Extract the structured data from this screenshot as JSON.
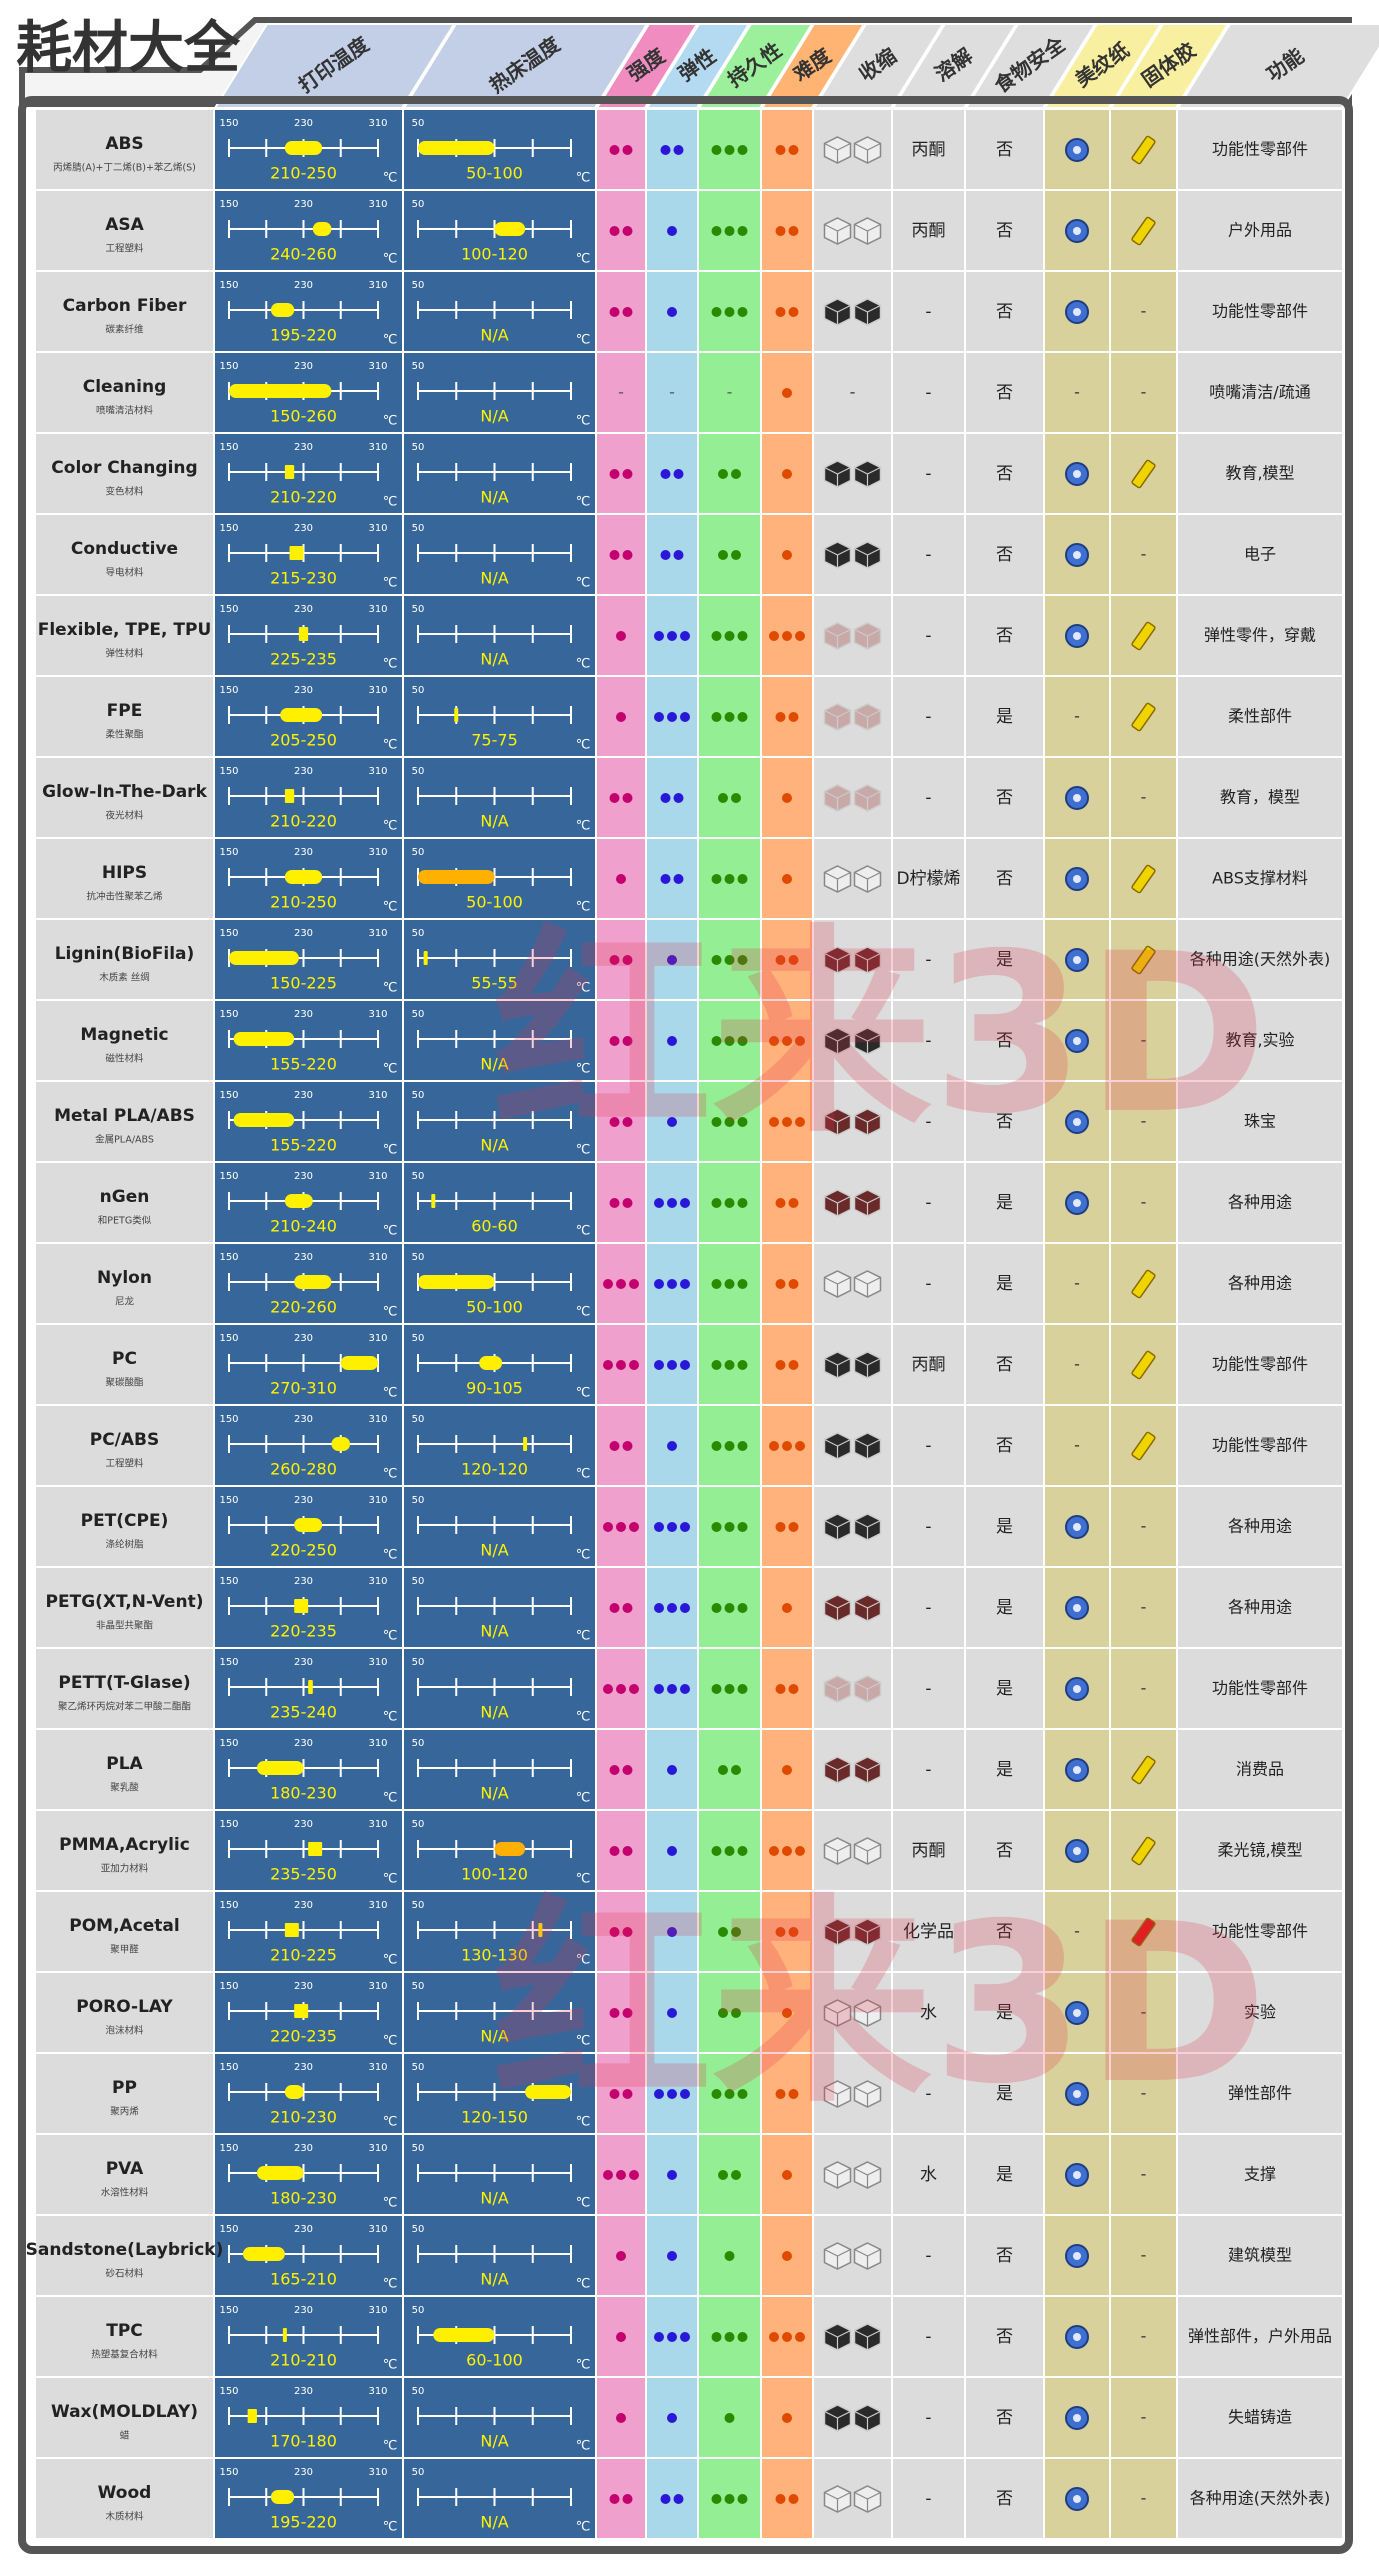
{
  "table": {
    "title": "耗材大全",
    "watermark": "红来3D",
    "header": {
      "print": "打印温度",
      "bed": "热床温度",
      "st": "强度",
      "el": "弹性",
      "du": "持久性",
      "di": "难度",
      "sh": "收缩",
      "ds": "溶解",
      "fd": "食物安全",
      "tp": "美纹纸",
      "gl": "固体胶",
      "fn": "功能"
    },
    "unit": "℃",
    "print_axis": {
      "lim": [
        150,
        310
      ],
      "ticks": [
        150,
        230,
        310
      ],
      "minor": [
        190,
        270
      ]
    },
    "bed_axis": {
      "lim": [
        50,
        150
      ],
      "ticks": [
        50
      ],
      "minor": [
        75,
        100,
        125,
        150
      ]
    },
    "bar_color": "#fff000",
    "dot_colors": {
      "st": "#c4006e",
      "el": "#2a18d8",
      "du": "#2a8a00",
      "di": "#e04a00"
    },
    "shrink_colors": [
      "#eeeeee",
      "#c9a8a8",
      "#6a2a2a",
      "#2a2a2a"
    ],
    "rows": [
      {
        "n": "ABS",
        "s": "丙烯腈(A)+丁二烯(B)+苯乙烯(S)",
        "p": [
          210,
          250
        ],
        "pl": "210-250",
        "b": [
          50,
          100
        ],
        "bl": "50-100",
        "st": 2,
        "el": 2,
        "du": 3,
        "di": 2,
        "sh": 1,
        "ds": "丙酮",
        "fd": "否",
        "tp": "#3f6fd0",
        "gl": "#f0d400",
        "fn": "功能性零部件"
      },
      {
        "n": "ASA",
        "s": "工程塑料",
        "p": [
          240,
          260
        ],
        "pl": "240-260",
        "b": [
          100,
          120
        ],
        "bl": "100-120",
        "st": 2,
        "el": 1,
        "du": 3,
        "di": 2,
        "sh": 1,
        "ds": "丙酮",
        "fd": "否",
        "tp": "#3f6fd0",
        "gl": "#f0d400",
        "fn": "户外用品"
      },
      {
        "n": "Carbon Fiber",
        "s": "碳素纤维",
        "p": [
          195,
          220
        ],
        "pl": "195-220",
        "b": null,
        "bl": "N/A",
        "st": 2,
        "el": 1,
        "du": 3,
        "di": 2,
        "sh": 4,
        "ds": "-",
        "fd": "否",
        "tp": "#3f6fd0",
        "gl": "-",
        "fn": "功能性零部件"
      },
      {
        "n": "Cleaning",
        "s": "喷嘴清洁材料",
        "p": [
          150,
          260
        ],
        "pl": "150-260",
        "b": null,
        "bl": "N/A",
        "st": "-",
        "el": "-",
        "du": "-",
        "di": 1,
        "sh": "-",
        "ds": "-",
        "fd": "否",
        "tp": "-",
        "gl": "-",
        "fn": "喷嘴清洁/疏通"
      },
      {
        "n": "Color Changing",
        "s": "变色材料",
        "p": [
          210,
          220
        ],
        "pl": "210-220",
        "b": null,
        "bl": "N/A",
        "st": 2,
        "el": 2,
        "du": 2,
        "di": 1,
        "sh": 4,
        "ds": "-",
        "fd": "否",
        "tp": "#3f6fd0",
        "gl": "#f0d400",
        "fn": "教育,模型"
      },
      {
        "n": "Conductive",
        "s": "导电材料",
        "p": [
          215,
          230
        ],
        "pl": "215-230",
        "b": null,
        "bl": "N/A",
        "st": 2,
        "el": 2,
        "du": 2,
        "di": 1,
        "sh": 4,
        "ds": "-",
        "fd": "否",
        "tp": "#3f6fd0",
        "gl": "-",
        "fn": "电子"
      },
      {
        "n": "Flexible, TPE, TPU",
        "s": "弹性材料",
        "p": [
          225,
          235
        ],
        "pl": "225-235",
        "b": null,
        "bl": "N/A",
        "st": 1,
        "el": 3,
        "du": 3,
        "di": 3,
        "sh": 2,
        "ds": "-",
        "fd": "否",
        "tp": "#3f6fd0",
        "gl": "#f0d400",
        "fn": "弹性零件，穿戴"
      },
      {
        "n": "FPE",
        "s": "柔性聚酯",
        "p": [
          205,
          250
        ],
        "pl": "205-250",
        "b": [
          75,
          75
        ],
        "bl": "75-75",
        "st": 1,
        "el": 3,
        "du": 3,
        "di": 2,
        "sh": 2,
        "ds": "-",
        "fd": "是",
        "tp": "-",
        "gl": "#f0d400",
        "fn": "柔性部件"
      },
      {
        "n": "Glow-In-The-Dark",
        "s": "夜光材料",
        "p": [
          210,
          220
        ],
        "pl": "210-220",
        "b": null,
        "bl": "N/A",
        "st": 2,
        "el": 2,
        "du": 2,
        "di": 1,
        "sh": 2,
        "ds": "-",
        "fd": "否",
        "tp": "#3f6fd0",
        "gl": "-",
        "fn": "教育，模型"
      },
      {
        "n": "HIPS",
        "s": "抗冲击性聚苯乙烯",
        "p": [
          210,
          250
        ],
        "pl": "210-250",
        "b": [
          50,
          100
        ],
        "bl": "50-100",
        "bc": "#ffb000",
        "st": 1,
        "el": 2,
        "du": 3,
        "di": 1,
        "sh": 1,
        "ds": "D柠檬烯",
        "fd": "否",
        "tp": "#3f6fd0",
        "gl": "#f0d400",
        "fn": "ABS支撑材料"
      },
      {
        "n": "Lignin(BioFila)",
        "s": "木质素 丝绸",
        "p": [
          150,
          225
        ],
        "pl": "150-225",
        "b": [
          55,
          55
        ],
        "bl": "55-55",
        "st": 2,
        "el": 1,
        "du": 3,
        "di": 2,
        "sh": 3,
        "ds": "-",
        "fd": "是",
        "tp": "#3f6fd0",
        "gl": "#f0d400",
        "fn": "各种用途(天然外表)"
      },
      {
        "n": "Magnetic",
        "s": "磁性材料",
        "p": [
          155,
          220
        ],
        "pl": "155-220",
        "b": null,
        "bl": "N/A",
        "st": 2,
        "el": 1,
        "du": 3,
        "di": 3,
        "sh": 4,
        "ds": "-",
        "fd": "否",
        "tp": "#3f6fd0",
        "gl": "-",
        "fn": "教育,实验"
      },
      {
        "n": "Metal PLA/ABS",
        "s": "金属PLA/ABS",
        "p": [
          155,
          220
        ],
        "pl": "155-220",
        "b": null,
        "bl": "N/A",
        "st": 2,
        "el": 1,
        "du": 3,
        "di": 3,
        "sh": 3,
        "ds": "-",
        "fd": "否",
        "tp": "#3f6fd0",
        "gl": "-",
        "fn": "珠宝"
      },
      {
        "n": "nGen",
        "s": "和PETG类似",
        "p": [
          210,
          240
        ],
        "pl": "210-240",
        "b": [
          60,
          60
        ],
        "bl": "60-60",
        "st": 2,
        "el": 3,
        "du": 3,
        "di": 2,
        "sh": 3,
        "ds": "-",
        "fd": "是",
        "tp": "#3f6fd0",
        "gl": "-",
        "fn": "各种用途"
      },
      {
        "n": "Nylon",
        "s": "尼龙",
        "p": [
          220,
          260
        ],
        "pl": "220-260",
        "b": [
          50,
          100
        ],
        "bl": "50-100",
        "st": 3,
        "el": 3,
        "du": 3,
        "di": 2,
        "sh": 1,
        "ds": "-",
        "fd": "是",
        "tp": "-",
        "gl": "#f0d400",
        "fn": "各种用途"
      },
      {
        "n": "PC",
        "s": "聚碳酸酯",
        "p": [
          270,
          310
        ],
        "pl": "270-310",
        "b": [
          90,
          105
        ],
        "bl": "90-105",
        "st": 3,
        "el": 3,
        "du": 3,
        "di": 2,
        "sh": 4,
        "ds": "丙酮",
        "fd": "否",
        "tp": "-",
        "gl": "#f0d400",
        "fn": "功能性零部件"
      },
      {
        "n": "PC/ABS",
        "s": "工程塑料",
        "p": [
          260,
          280
        ],
        "pl": "260-280",
        "b": [
          120,
          120
        ],
        "bl": "120-120",
        "st": 2,
        "el": 1,
        "du": 3,
        "di": 3,
        "sh": 4,
        "ds": "-",
        "fd": "否",
        "tp": "-",
        "gl": "#f0d400",
        "fn": "功能性零部件"
      },
      {
        "n": "PET(CPE)",
        "s": "涤纶树脂",
        "p": [
          220,
          250
        ],
        "pl": "220-250",
        "b": null,
        "bl": "N/A",
        "st": 3,
        "el": 3,
        "du": 3,
        "di": 2,
        "sh": 4,
        "ds": "-",
        "fd": "是",
        "tp": "#3f6fd0",
        "gl": "-",
        "fn": "各种用途"
      },
      {
        "n": "PETG(XT,N-Vent)",
        "s": "非晶型共聚酯",
        "p": [
          220,
          235
        ],
        "pl": "220-235",
        "b": null,
        "bl": "N/A",
        "st": 2,
        "el": 3,
        "du": 3,
        "di": 1,
        "sh": 3,
        "ds": "-",
        "fd": "是",
        "tp": "#3f6fd0",
        "gl": "-",
        "fn": "各种用途"
      },
      {
        "n": "PETT(T-Glase)",
        "s": "聚乙烯环丙烷对苯二甲酸二酯酯",
        "p": [
          235,
          240
        ],
        "pl": "235-240",
        "b": null,
        "bl": "N/A",
        "st": 3,
        "el": 3,
        "du": 3,
        "di": 2,
        "sh": 2,
        "ds": "-",
        "fd": "是",
        "tp": "#3f6fd0",
        "gl": "-",
        "fn": "功能性零部件"
      },
      {
        "n": "PLA",
        "s": "聚乳酸",
        "p": [
          180,
          230
        ],
        "pl": "180-230",
        "b": null,
        "bl": "N/A",
        "st": 2,
        "el": 1,
        "du": 2,
        "di": 1,
        "sh": 3,
        "ds": "-",
        "fd": "是",
        "tp": "#3f6fd0",
        "gl": "#f0d400",
        "fn": "消费品"
      },
      {
        "n": "PMMA,Acrylic",
        "s": "亚加力材料",
        "p": [
          235,
          250
        ],
        "pl": "235-250",
        "b": [
          100,
          120
        ],
        "bl": "100-120",
        "bc": "#ffb000",
        "st": 2,
        "el": 1,
        "du": 3,
        "di": 3,
        "sh": 1,
        "ds": "丙酮",
        "fd": "否",
        "tp": "#3f6fd0",
        "gl": "#f0d400",
        "fn": "柔光镜,模型"
      },
      {
        "n": "POM,Acetal",
        "s": "聚甲醛",
        "p": [
          210,
          225
        ],
        "pl": "210-225",
        "b": [
          130,
          130
        ],
        "bl": "130-130",
        "st": 2,
        "el": 1,
        "du": 2,
        "di": 2,
        "sh": 3,
        "ds": "化学品",
        "fd": "否",
        "tp": "-",
        "gl": "#e01a1a",
        "fn": "功能性零部件"
      },
      {
        "n": "PORO-LAY",
        "s": "泡沫材料",
        "p": [
          220,
          235
        ],
        "pl": "220-235",
        "b": null,
        "bl": "N/A",
        "st": 2,
        "el": 1,
        "du": 2,
        "di": 1,
        "sh": 1,
        "ds": "水",
        "fd": "是",
        "tp": "#3f6fd0",
        "gl": "-",
        "fn": "实验"
      },
      {
        "n": "PP",
        "s": "聚丙烯",
        "p": [
          210,
          230
        ],
        "pl": "210-230",
        "b": [
          120,
          150
        ],
        "bl": "120-150",
        "st": 2,
        "el": 3,
        "du": 3,
        "di": 2,
        "sh": 1,
        "ds": "-",
        "fd": "是",
        "tp": "#3f6fd0",
        "gl": "-",
        "fn": "弹性部件"
      },
      {
        "n": "PVA",
        "s": "水溶性材料",
        "p": [
          180,
          230
        ],
        "pl": "180-230",
        "b": null,
        "bl": "N/A",
        "st": 3,
        "el": 1,
        "du": 2,
        "di": 1,
        "sh": 1,
        "ds": "水",
        "fd": "是",
        "tp": "#3f6fd0",
        "gl": "-",
        "fn": "支撑"
      },
      {
        "n": "Sandstone(Laybrick)",
        "s": "砂石材料",
        "p": [
          165,
          210
        ],
        "pl": "165-210",
        "b": null,
        "bl": "N/A",
        "st": 1,
        "el": 1,
        "du": 1,
        "di": 1,
        "sh": 1,
        "ds": "-",
        "fd": "否",
        "tp": "#3f6fd0",
        "gl": "-",
        "fn": "建筑模型"
      },
      {
        "n": "TPC",
        "s": "热塑基复合材料",
        "p": [
          210,
          210
        ],
        "pl": "210-210",
        "b": [
          60,
          100
        ],
        "bl": "60-100",
        "st": 1,
        "el": 3,
        "du": 3,
        "di": 3,
        "sh": 4,
        "ds": "-",
        "fd": "否",
        "tp": "#3f6fd0",
        "gl": "-",
        "fn": "弹性部件，户外用品"
      },
      {
        "n": "Wax(MOLDLAY)",
        "s": "蜡",
        "p": [
          170,
          180
        ],
        "pl": "170-180",
        "b": null,
        "bl": "N/A",
        "st": 1,
        "el": 1,
        "du": 1,
        "di": 1,
        "sh": 4,
        "ds": "-",
        "fd": "否",
        "tp": "#3f6fd0",
        "gl": "-",
        "fn": "失蜡铸造"
      },
      {
        "n": "Wood",
        "s": "木质材料",
        "p": [
          195,
          220
        ],
        "pl": "195-220",
        "b": null,
        "bl": "N/A",
        "st": 2,
        "el": 2,
        "du": 3,
        "di": 2,
        "sh": 1,
        "ds": "-",
        "fd": "否",
        "tp": "#3f6fd0",
        "gl": "-",
        "fn": "各种用途(天然外表)"
      }
    ]
  }
}
